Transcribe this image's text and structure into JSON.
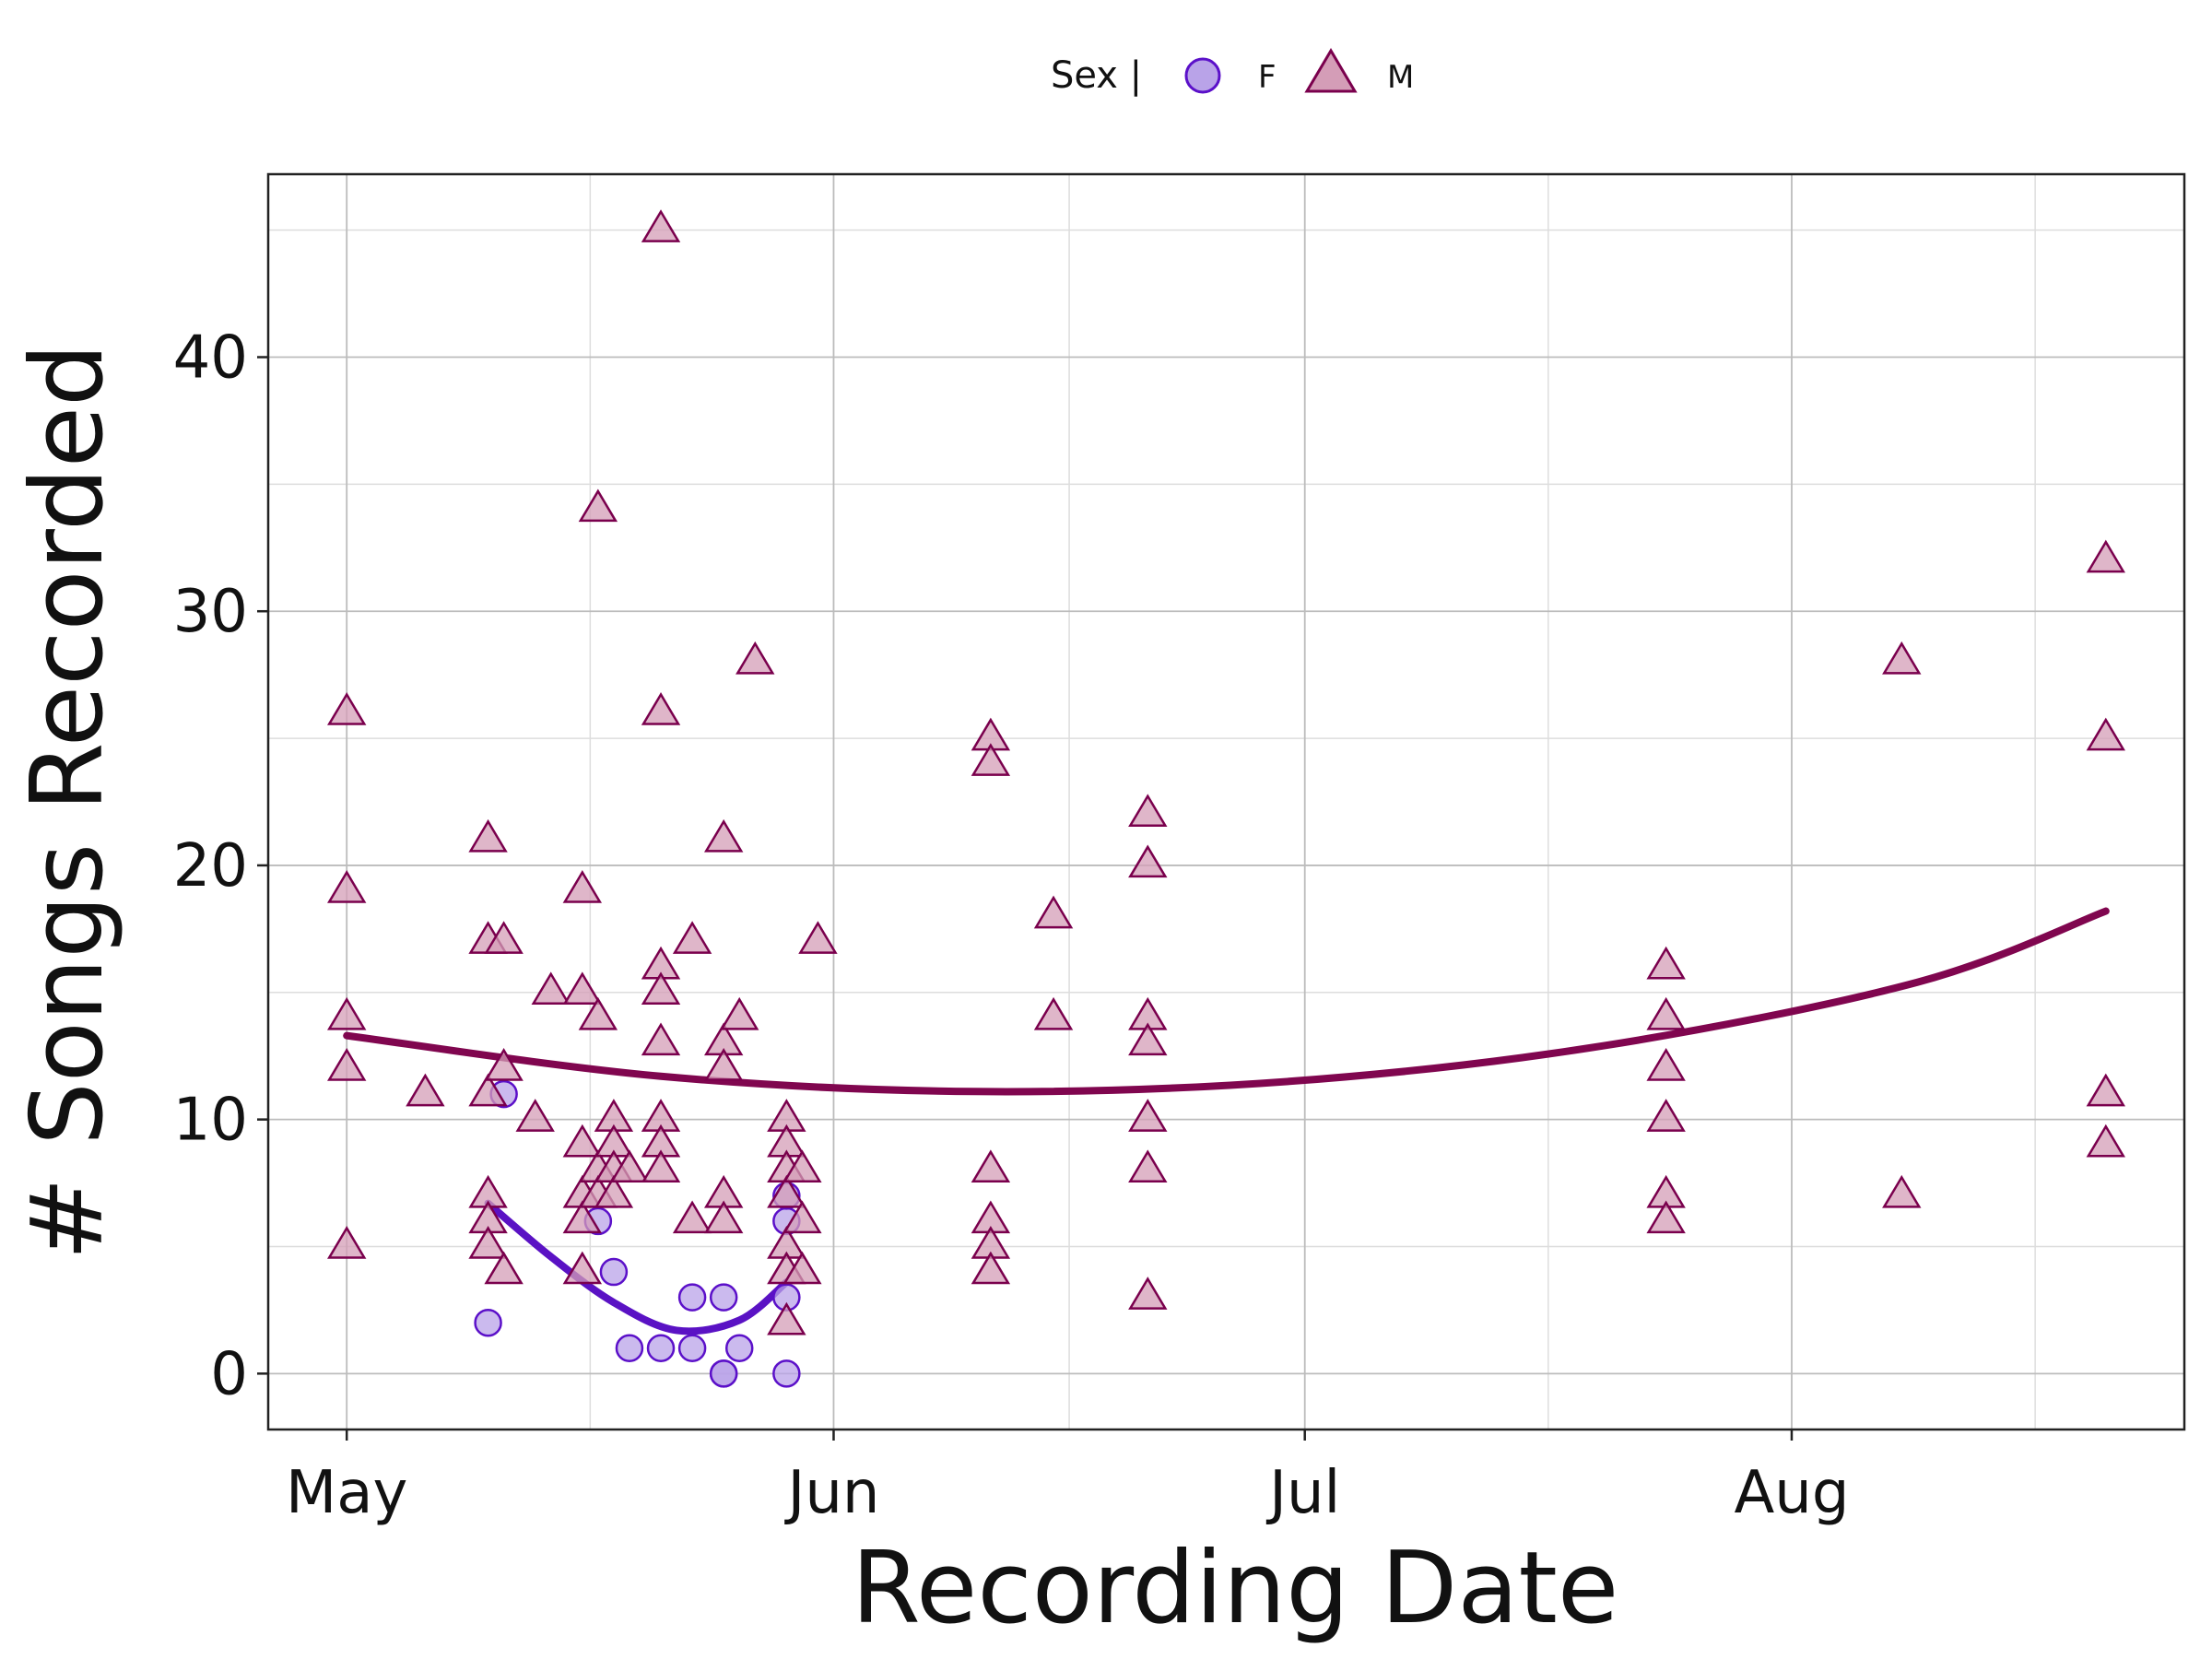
{
  "chart_data": {
    "type": "scatter",
    "title": "",
    "xlabel": "Recording Date",
    "ylabel": "# Songs Recorded",
    "x_ticks": [
      "May",
      "Jun",
      "Jul",
      "Aug"
    ],
    "x_tick_dates": [
      "2000-05-01",
      "2000-06-01",
      "2000-07-01",
      "2000-08-01"
    ],
    "xlim": [
      "2000-04-26",
      "2000-08-26"
    ],
    "y_ticks": [
      0,
      10,
      20,
      30,
      40
    ],
    "ylim": [
      -2.2,
      47.2
    ],
    "grid": true,
    "legend": {
      "title": "Sex |",
      "placement": "top-center",
      "entries": [
        "F",
        "M"
      ]
    },
    "colors": {
      "F_fill": "#b9a3e8",
      "F_stroke": "#5b10c9",
      "M_fill": "#d49db7",
      "M_stroke": "#7a004d",
      "F_line": "#5a12c4",
      "M_line": "#80064f"
    },
    "series": [
      {
        "name": "F",
        "marker": "circle",
        "points": [
          [
            "2000-05-10",
            2
          ],
          [
            "2000-05-11",
            11
          ],
          [
            "2000-05-17",
            6
          ],
          [
            "2000-05-18",
            4
          ],
          [
            "2000-05-19",
            1
          ],
          [
            "2000-05-21",
            1
          ],
          [
            "2000-05-23",
            3
          ],
          [
            "2000-05-23",
            1
          ],
          [
            "2000-05-25",
            3
          ],
          [
            "2000-05-25",
            0
          ],
          [
            "2000-05-25",
            0
          ],
          [
            "2000-05-26",
            1
          ],
          [
            "2000-05-29",
            0
          ],
          [
            "2000-05-29",
            3
          ],
          [
            "2000-05-29",
            6
          ],
          [
            "2000-05-29",
            7
          ]
        ],
        "trend": [
          [
            "2000-05-10",
            6.7
          ],
          [
            "2000-05-14",
            4.6
          ],
          [
            "2000-05-18",
            2.8
          ],
          [
            "2000-05-22",
            1.7
          ],
          [
            "2000-05-26",
            2.1
          ],
          [
            "2000-05-29",
            3.6
          ]
        ]
      },
      {
        "name": "M",
        "marker": "triangle",
        "points": [
          [
            "2000-05-01",
            26
          ],
          [
            "2000-05-01",
            19
          ],
          [
            "2000-05-01",
            14
          ],
          [
            "2000-05-01",
            12
          ],
          [
            "2000-05-01",
            5
          ],
          [
            "2000-05-06",
            11
          ],
          [
            "2000-05-10",
            21
          ],
          [
            "2000-05-10",
            17
          ],
          [
            "2000-05-10",
            11
          ],
          [
            "2000-05-10",
            7
          ],
          [
            "2000-05-10",
            6
          ],
          [
            "2000-05-10",
            5
          ],
          [
            "2000-05-11",
            17
          ],
          [
            "2000-05-11",
            12
          ],
          [
            "2000-05-11",
            4
          ],
          [
            "2000-05-13",
            10
          ],
          [
            "2000-05-14",
            15
          ],
          [
            "2000-05-16",
            19
          ],
          [
            "2000-05-16",
            15
          ],
          [
            "2000-05-16",
            9
          ],
          [
            "2000-05-16",
            7
          ],
          [
            "2000-05-16",
            6
          ],
          [
            "2000-05-16",
            4
          ],
          [
            "2000-05-17",
            34
          ],
          [
            "2000-05-17",
            14
          ],
          [
            "2000-05-17",
            8
          ],
          [
            "2000-05-17",
            7
          ],
          [
            "2000-05-18",
            10
          ],
          [
            "2000-05-18",
            9
          ],
          [
            "2000-05-18",
            8
          ],
          [
            "2000-05-18",
            7
          ],
          [
            "2000-05-19",
            8
          ],
          [
            "2000-05-21",
            45
          ],
          [
            "2000-05-21",
            26
          ],
          [
            "2000-05-21",
            16
          ],
          [
            "2000-05-21",
            15
          ],
          [
            "2000-05-21",
            13
          ],
          [
            "2000-05-21",
            10
          ],
          [
            "2000-05-21",
            9
          ],
          [
            "2000-05-21",
            8
          ],
          [
            "2000-05-23",
            17
          ],
          [
            "2000-05-23",
            6
          ],
          [
            "2000-05-25",
            21
          ],
          [
            "2000-05-25",
            13
          ],
          [
            "2000-05-25",
            12
          ],
          [
            "2000-05-25",
            7
          ],
          [
            "2000-05-25",
            6
          ],
          [
            "2000-05-26",
            14
          ],
          [
            "2000-05-27",
            28
          ],
          [
            "2000-05-29",
            10
          ],
          [
            "2000-05-29",
            9
          ],
          [
            "2000-05-29",
            8
          ],
          [
            "2000-05-29",
            7
          ],
          [
            "2000-05-29",
            5
          ],
          [
            "2000-05-29",
            4
          ],
          [
            "2000-05-29",
            2
          ],
          [
            "2000-05-30",
            8
          ],
          [
            "2000-05-30",
            6
          ],
          [
            "2000-05-30",
            4
          ],
          [
            "2000-05-31",
            17
          ],
          [
            "2000-06-11",
            25
          ],
          [
            "2000-06-11",
            24
          ],
          [
            "2000-06-11",
            8
          ],
          [
            "2000-06-11",
            6
          ],
          [
            "2000-06-11",
            5
          ],
          [
            "2000-06-11",
            4
          ],
          [
            "2000-06-15",
            18
          ],
          [
            "2000-06-15",
            14
          ],
          [
            "2000-06-21",
            22
          ],
          [
            "2000-06-21",
            20
          ],
          [
            "2000-06-21",
            14
          ],
          [
            "2000-06-21",
            13
          ],
          [
            "2000-06-21",
            10
          ],
          [
            "2000-06-21",
            8
          ],
          [
            "2000-06-21",
            3
          ],
          [
            "2000-07-24",
            16
          ],
          [
            "2000-07-24",
            14
          ],
          [
            "2000-07-24",
            12
          ],
          [
            "2000-07-24",
            10
          ],
          [
            "2000-07-24",
            7
          ],
          [
            "2000-07-24",
            6
          ],
          [
            "2000-08-08",
            28
          ],
          [
            "2000-08-08",
            7
          ],
          [
            "2000-08-21",
            32
          ],
          [
            "2000-08-21",
            25
          ],
          [
            "2000-08-21",
            11
          ],
          [
            "2000-08-21",
            9
          ]
        ],
        "trend": [
          [
            "2000-05-01",
            13.3
          ],
          [
            "2000-05-21",
            11.7
          ],
          [
            "2000-06-10",
            11.1
          ],
          [
            "2000-06-30",
            11.5
          ],
          [
            "2000-07-20",
            12.9
          ],
          [
            "2000-08-09",
            15.4
          ],
          [
            "2000-08-21",
            18.2
          ]
        ]
      }
    ]
  }
}
